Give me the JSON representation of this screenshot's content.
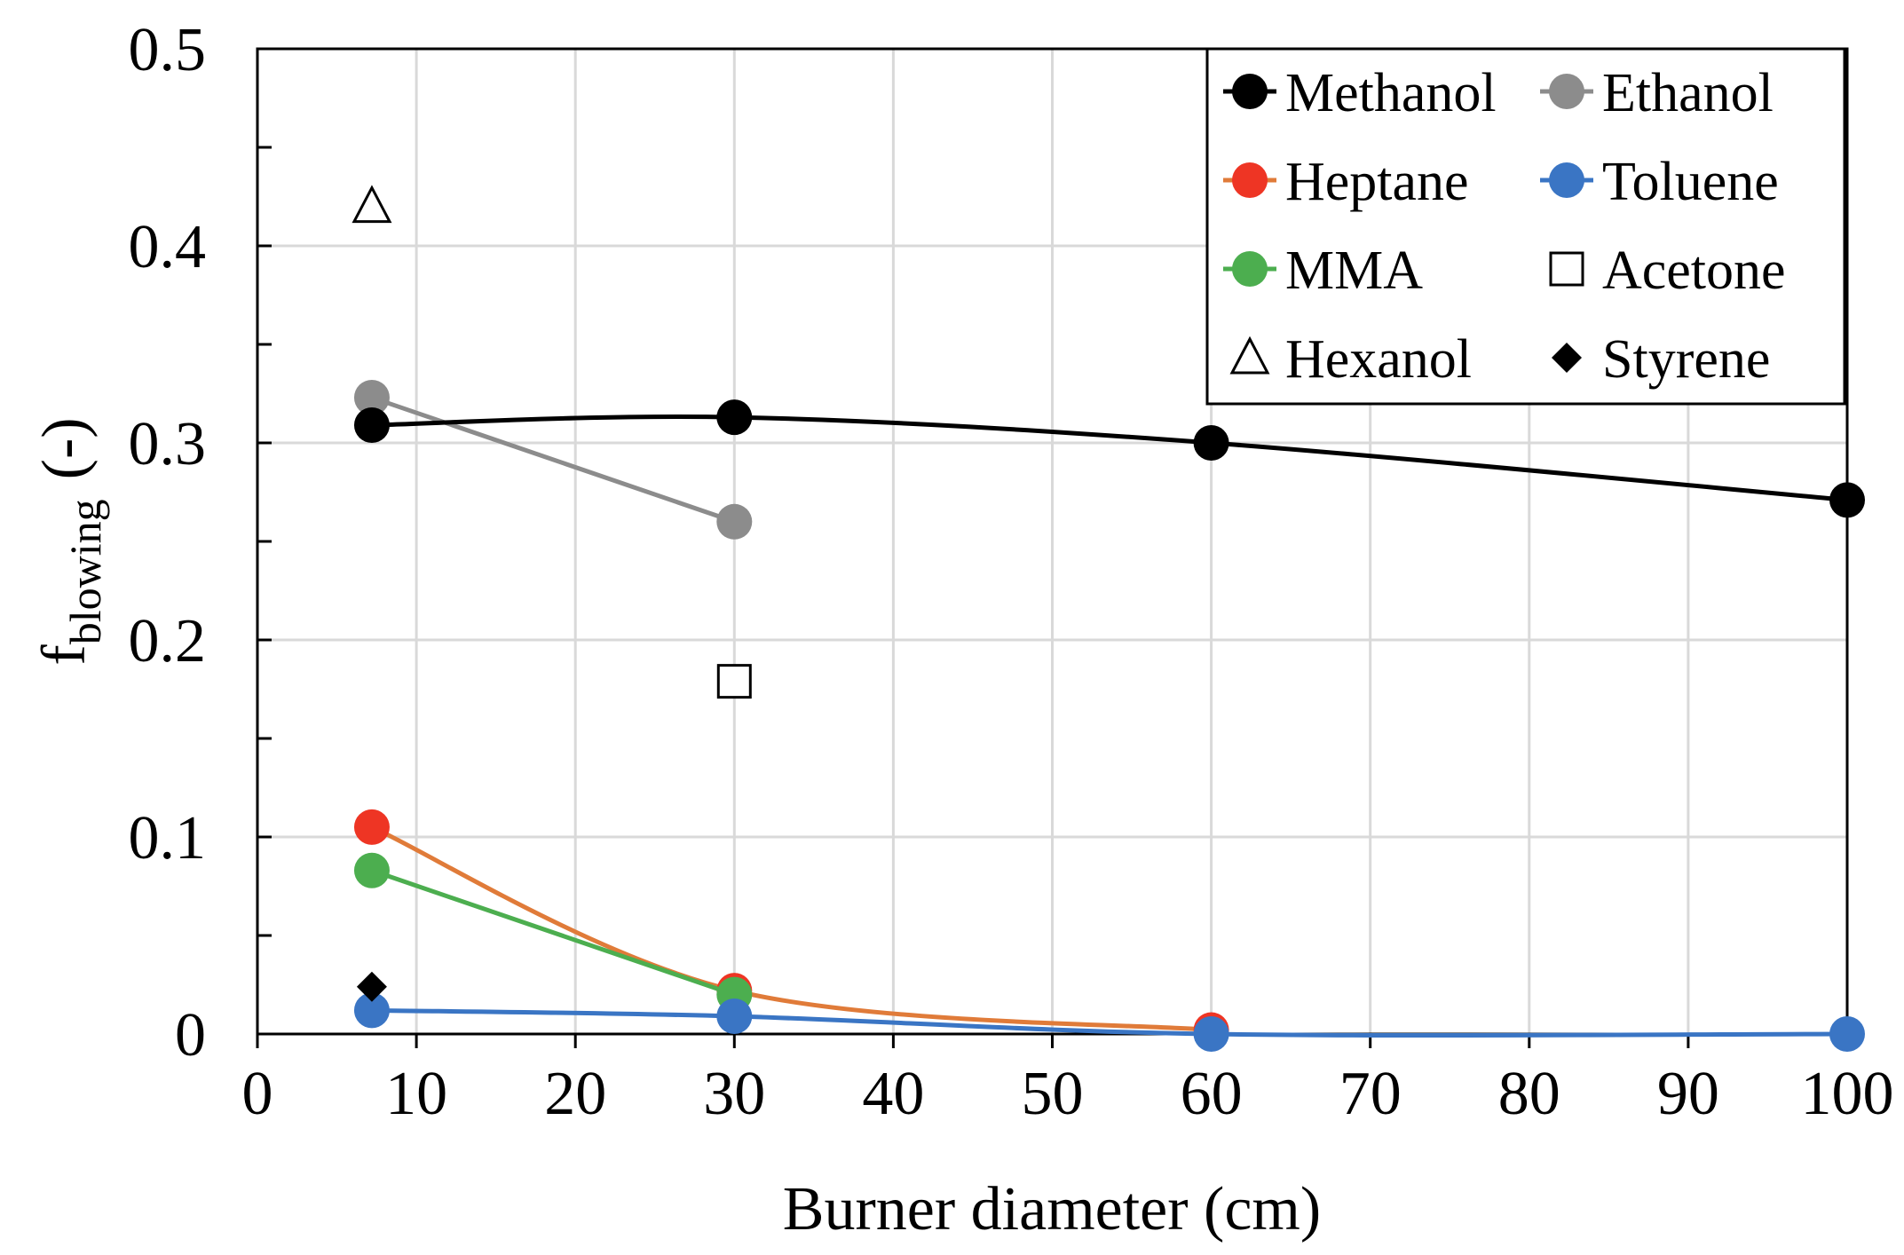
{
  "chart_data": {
    "type": "line",
    "xlabel": "Burner diameter (cm)",
    "ylabel_main": "f",
    "ylabel_sub": "blowing",
    "ylabel_suffix": "(-)",
    "xlim": [
      0,
      100
    ],
    "ylim": [
      0,
      0.5
    ],
    "xticks": [
      0,
      10,
      20,
      30,
      40,
      50,
      60,
      70,
      80,
      90,
      100
    ],
    "xtick_labels": [
      "0",
      "10",
      "20",
      "30",
      "40",
      "50",
      "60",
      "70",
      "80",
      "90",
      "100"
    ],
    "yticks": [
      0,
      0.1,
      0.2,
      0.3,
      0.4,
      0.5
    ],
    "ytick_labels": [
      "0",
      "0.1",
      "0.2",
      "0.3",
      "0.4",
      "0.5"
    ],
    "yminor": [
      0.05,
      0.15,
      0.25,
      0.35,
      0.45
    ],
    "grid": true,
    "legend_position": "top-right",
    "series": [
      {
        "name": "Methanol",
        "marker": "circle",
        "color": "#000000",
        "line": true,
        "x": [
          7.2,
          30,
          60,
          100
        ],
        "y": [
          0.309,
          0.313,
          0.3,
          0.271
        ]
      },
      {
        "name": "Ethanol",
        "marker": "circle",
        "color": "#8c8c8c",
        "line": true,
        "x": [
          7.2,
          30
        ],
        "y": [
          0.323,
          0.26
        ]
      },
      {
        "name": "Heptane",
        "marker": "circle",
        "color": "#ee3524",
        "lineColor": "#e07b39",
        "line": true,
        "x": [
          7.2,
          30,
          60
        ],
        "y": [
          0.105,
          0.022,
          0.002
        ]
      },
      {
        "name": "Toluene",
        "marker": "circle",
        "color": "#3a75c4",
        "line": true,
        "x": [
          7.2,
          30,
          60,
          100
        ],
        "y": [
          0.012,
          0.009,
          0.0,
          0.0
        ]
      },
      {
        "name": "MMA",
        "marker": "circle",
        "color": "#4cae4f",
        "line": true,
        "x": [
          7.2,
          30
        ],
        "y": [
          0.083,
          0.02
        ]
      },
      {
        "name": "Acetone",
        "marker": "square-open",
        "color": "#000000",
        "line": false,
        "x": [
          30
        ],
        "y": [
          0.179
        ]
      },
      {
        "name": "Hexanol",
        "marker": "triangle-open",
        "color": "#000000",
        "line": false,
        "x": [
          7.2
        ],
        "y": [
          0.42
        ]
      },
      {
        "name": "Styrene",
        "marker": "diamond",
        "color": "#000000",
        "line": false,
        "x": [
          7.2
        ],
        "y": [
          0.024
        ]
      }
    ]
  }
}
